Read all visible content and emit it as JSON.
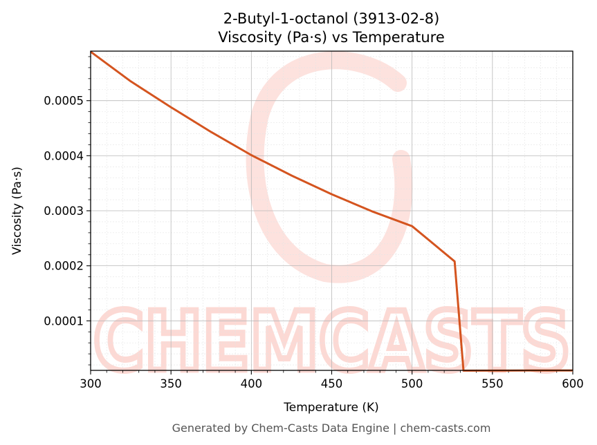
{
  "chart_data": {
    "type": "line",
    "title_line1": "2-Butyl-1-octanol (3913-02-8)",
    "title_line2": "Viscosity (Pa·s) vs Temperature",
    "xlabel": "Temperature (K)",
    "ylabel": "Viscosity (Pa·s)",
    "xlim": [
      300,
      600
    ],
    "ylim": [
      1e-05,
      0.00059
    ],
    "xticks": [
      300,
      350,
      400,
      450,
      500,
      550,
      600
    ],
    "xtick_labels": [
      "300",
      "350",
      "400",
      "450",
      "500",
      "550",
      "600"
    ],
    "yticks": [
      0.0001,
      0.0002,
      0.0003,
      0.0004,
      0.0005
    ],
    "ytick_labels": [
      "0.0001",
      "0.0002",
      "0.0003",
      "0.0004",
      "0.0005"
    ],
    "grid": true,
    "series": [
      {
        "color": "#d4541f",
        "x": [
          300,
          325,
          350,
          375,
          400,
          425,
          450,
          475,
          500,
          526.5,
          532,
          560,
          600
        ],
        "y": [
          0.000589,
          0.000535,
          0.000488,
          0.000443,
          0.000401,
          0.000364,
          0.00033,
          0.000299,
          0.000272,
          0.000208,
          9.5e-06,
          9.7e-06,
          9.9e-06
        ]
      }
    ]
  },
  "watermark": {
    "text": "CHEMCASTS",
    "color": "#fcd9d4"
  },
  "footer": "Generated by Chem-Casts Data Engine | chem-casts.com"
}
